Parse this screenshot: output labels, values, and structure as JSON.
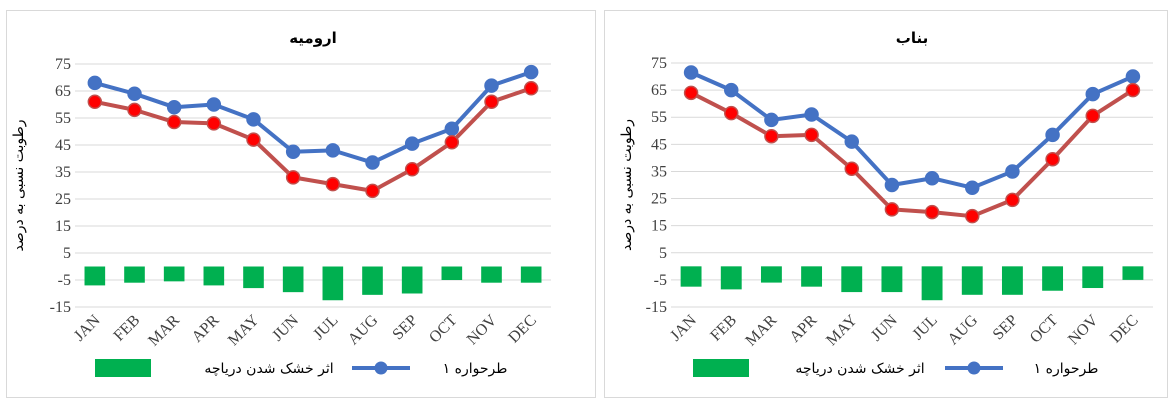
{
  "chart_data": [
    {
      "type": "line+bar",
      "title": "ارومیه",
      "ylabel": "رطوبت نسبی به درصد",
      "ylim": [
        -15,
        75
      ],
      "yticks": [
        -15,
        -5,
        5,
        15,
        25,
        35,
        45,
        55,
        65,
        75
      ],
      "categories": [
        "JAN",
        "FEB",
        "MAR",
        "APR",
        "MAY",
        "JUN",
        "JUL",
        "AUG",
        "SEP",
        "OCT",
        "NOV",
        "DEC"
      ],
      "series": [
        {
          "kind": "line",
          "color": "#4472c4",
          "values": [
            68,
            64,
            59,
            60,
            54.5,
            42.5,
            43,
            38.5,
            45.5,
            51,
            67,
            72
          ]
        },
        {
          "kind": "line",
          "color": "#c0504d",
          "marker": "#ff0000",
          "values": [
            61,
            58,
            53.5,
            53,
            47,
            33,
            30.5,
            28,
            36,
            46,
            61,
            66
          ]
        },
        {
          "kind": "bar",
          "color": "#00b050",
          "values": [
            -7,
            -6,
            -5.5,
            -7,
            -8,
            -9.5,
            -12.5,
            -10.5,
            -10,
            -5,
            -6,
            -6
          ]
        }
      ],
      "legend": [
        {
          "label": "طرحواره ۱",
          "kind": "line",
          "color": "#4472c4"
        },
        {
          "label": "اثر خشک شدن دریاچه",
          "kind": "bar",
          "color": "#00b050"
        }
      ],
      "legend_position": "bottom"
    },
    {
      "type": "line+bar",
      "title": "بناب",
      "ylabel": "رطوبت نسبی به درصد",
      "ylim": [
        -15,
        75
      ],
      "yticks": [
        -15,
        -5,
        5,
        15,
        25,
        35,
        45,
        55,
        65,
        75
      ],
      "categories": [
        "JAN",
        "FEB",
        "MAR",
        "APR",
        "MAY",
        "JUN",
        "JUL",
        "AUG",
        "SEP",
        "OCT",
        "NOV",
        "DEC"
      ],
      "series": [
        {
          "kind": "line",
          "color": "#4472c4",
          "values": [
            71.5,
            65,
            54,
            56,
            46,
            30,
            32.5,
            29,
            35,
            48.5,
            63.5,
            70
          ]
        },
        {
          "kind": "line",
          "color": "#c0504d",
          "marker": "#ff0000",
          "values": [
            64,
            56.5,
            48,
            48.5,
            36,
            21,
            20,
            18.5,
            24.5,
            39.5,
            55.5,
            65
          ]
        },
        {
          "kind": "bar",
          "color": "#00b050",
          "values": [
            -7.5,
            -8.5,
            -6,
            -7.5,
            -9.5,
            -9.5,
            -12.5,
            -10.5,
            -10.5,
            -9,
            -8,
            -5
          ]
        }
      ],
      "legend": [
        {
          "label": "طرحواره ۱",
          "kind": "line",
          "color": "#4472c4"
        },
        {
          "label": "اثر خشک شدن دریاچه",
          "kind": "bar",
          "color": "#00b050"
        }
      ],
      "legend_position": "bottom"
    }
  ]
}
